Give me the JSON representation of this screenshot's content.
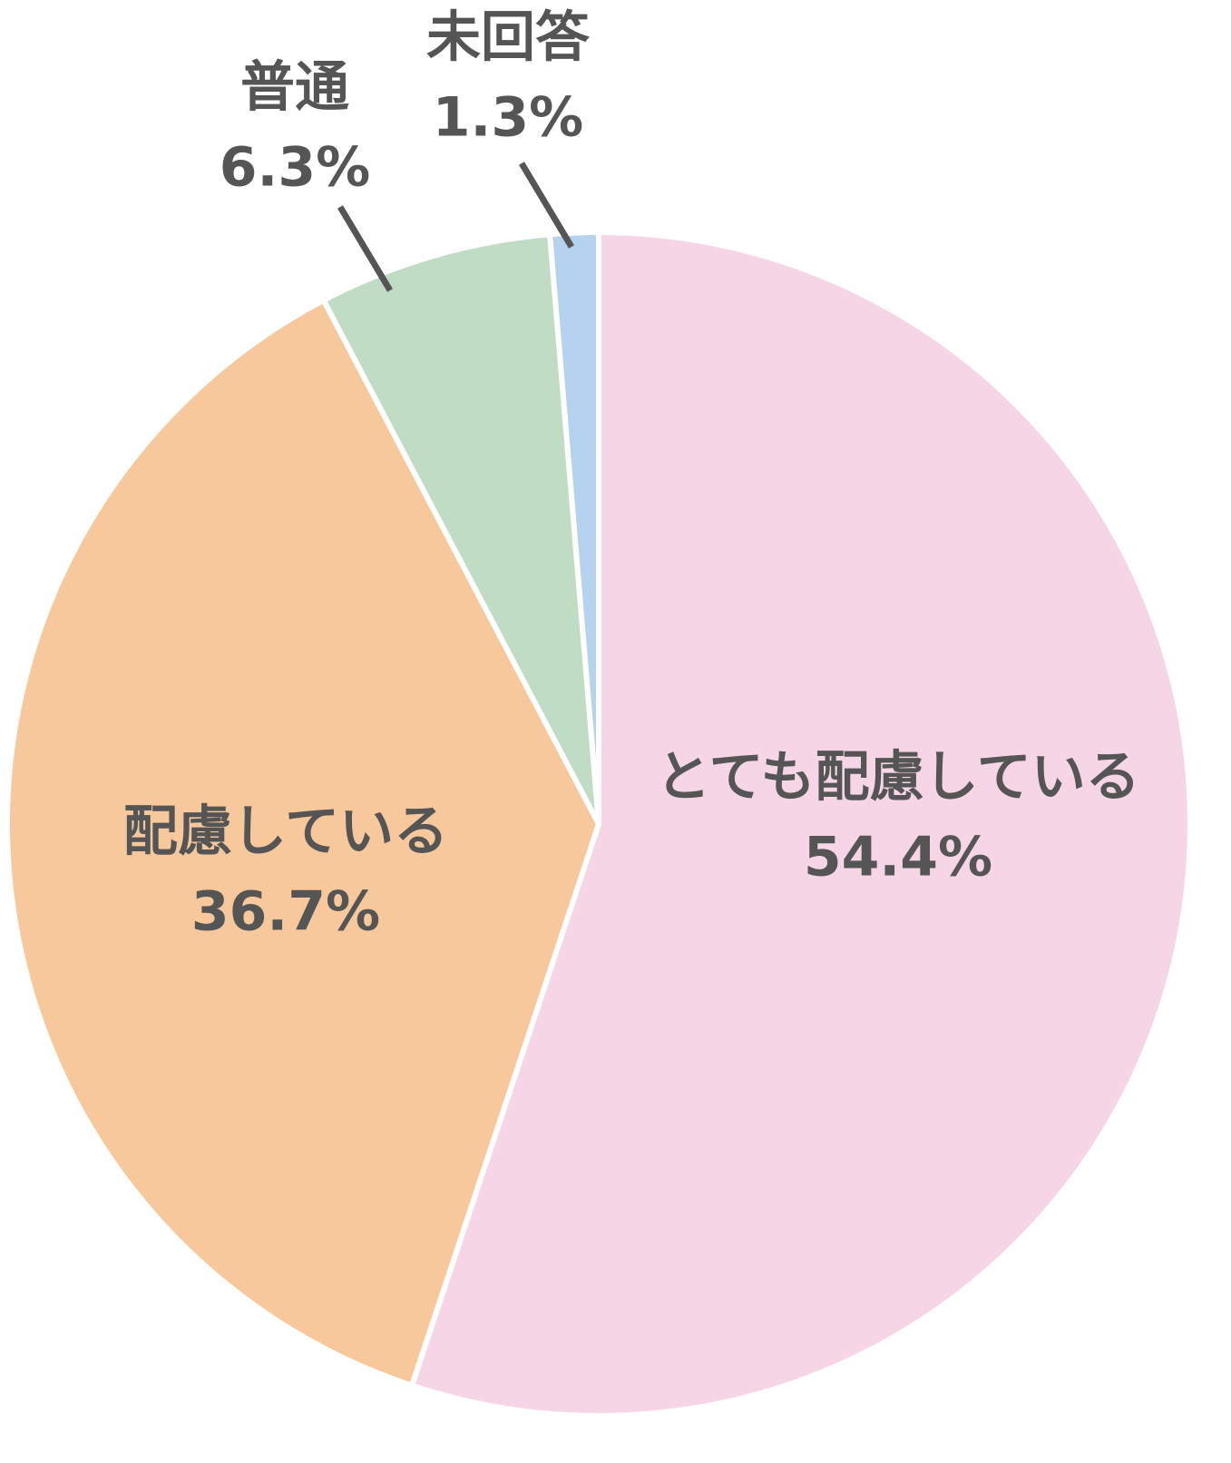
{
  "chart_data": {
    "type": "pie",
    "categories": [
      "とても配慮している",
      "配慮している",
      "普通",
      "未回答"
    ],
    "values": [
      54.4,
      36.7,
      6.3,
      1.3
    ],
    "value_labels": [
      "54.4%",
      "36.7%",
      "6.3%",
      "1.3%"
    ],
    "colors": [
      "#f5d5e6",
      "#f7c89b",
      "#c0dcc4",
      "#b5d3ee"
    ]
  }
}
